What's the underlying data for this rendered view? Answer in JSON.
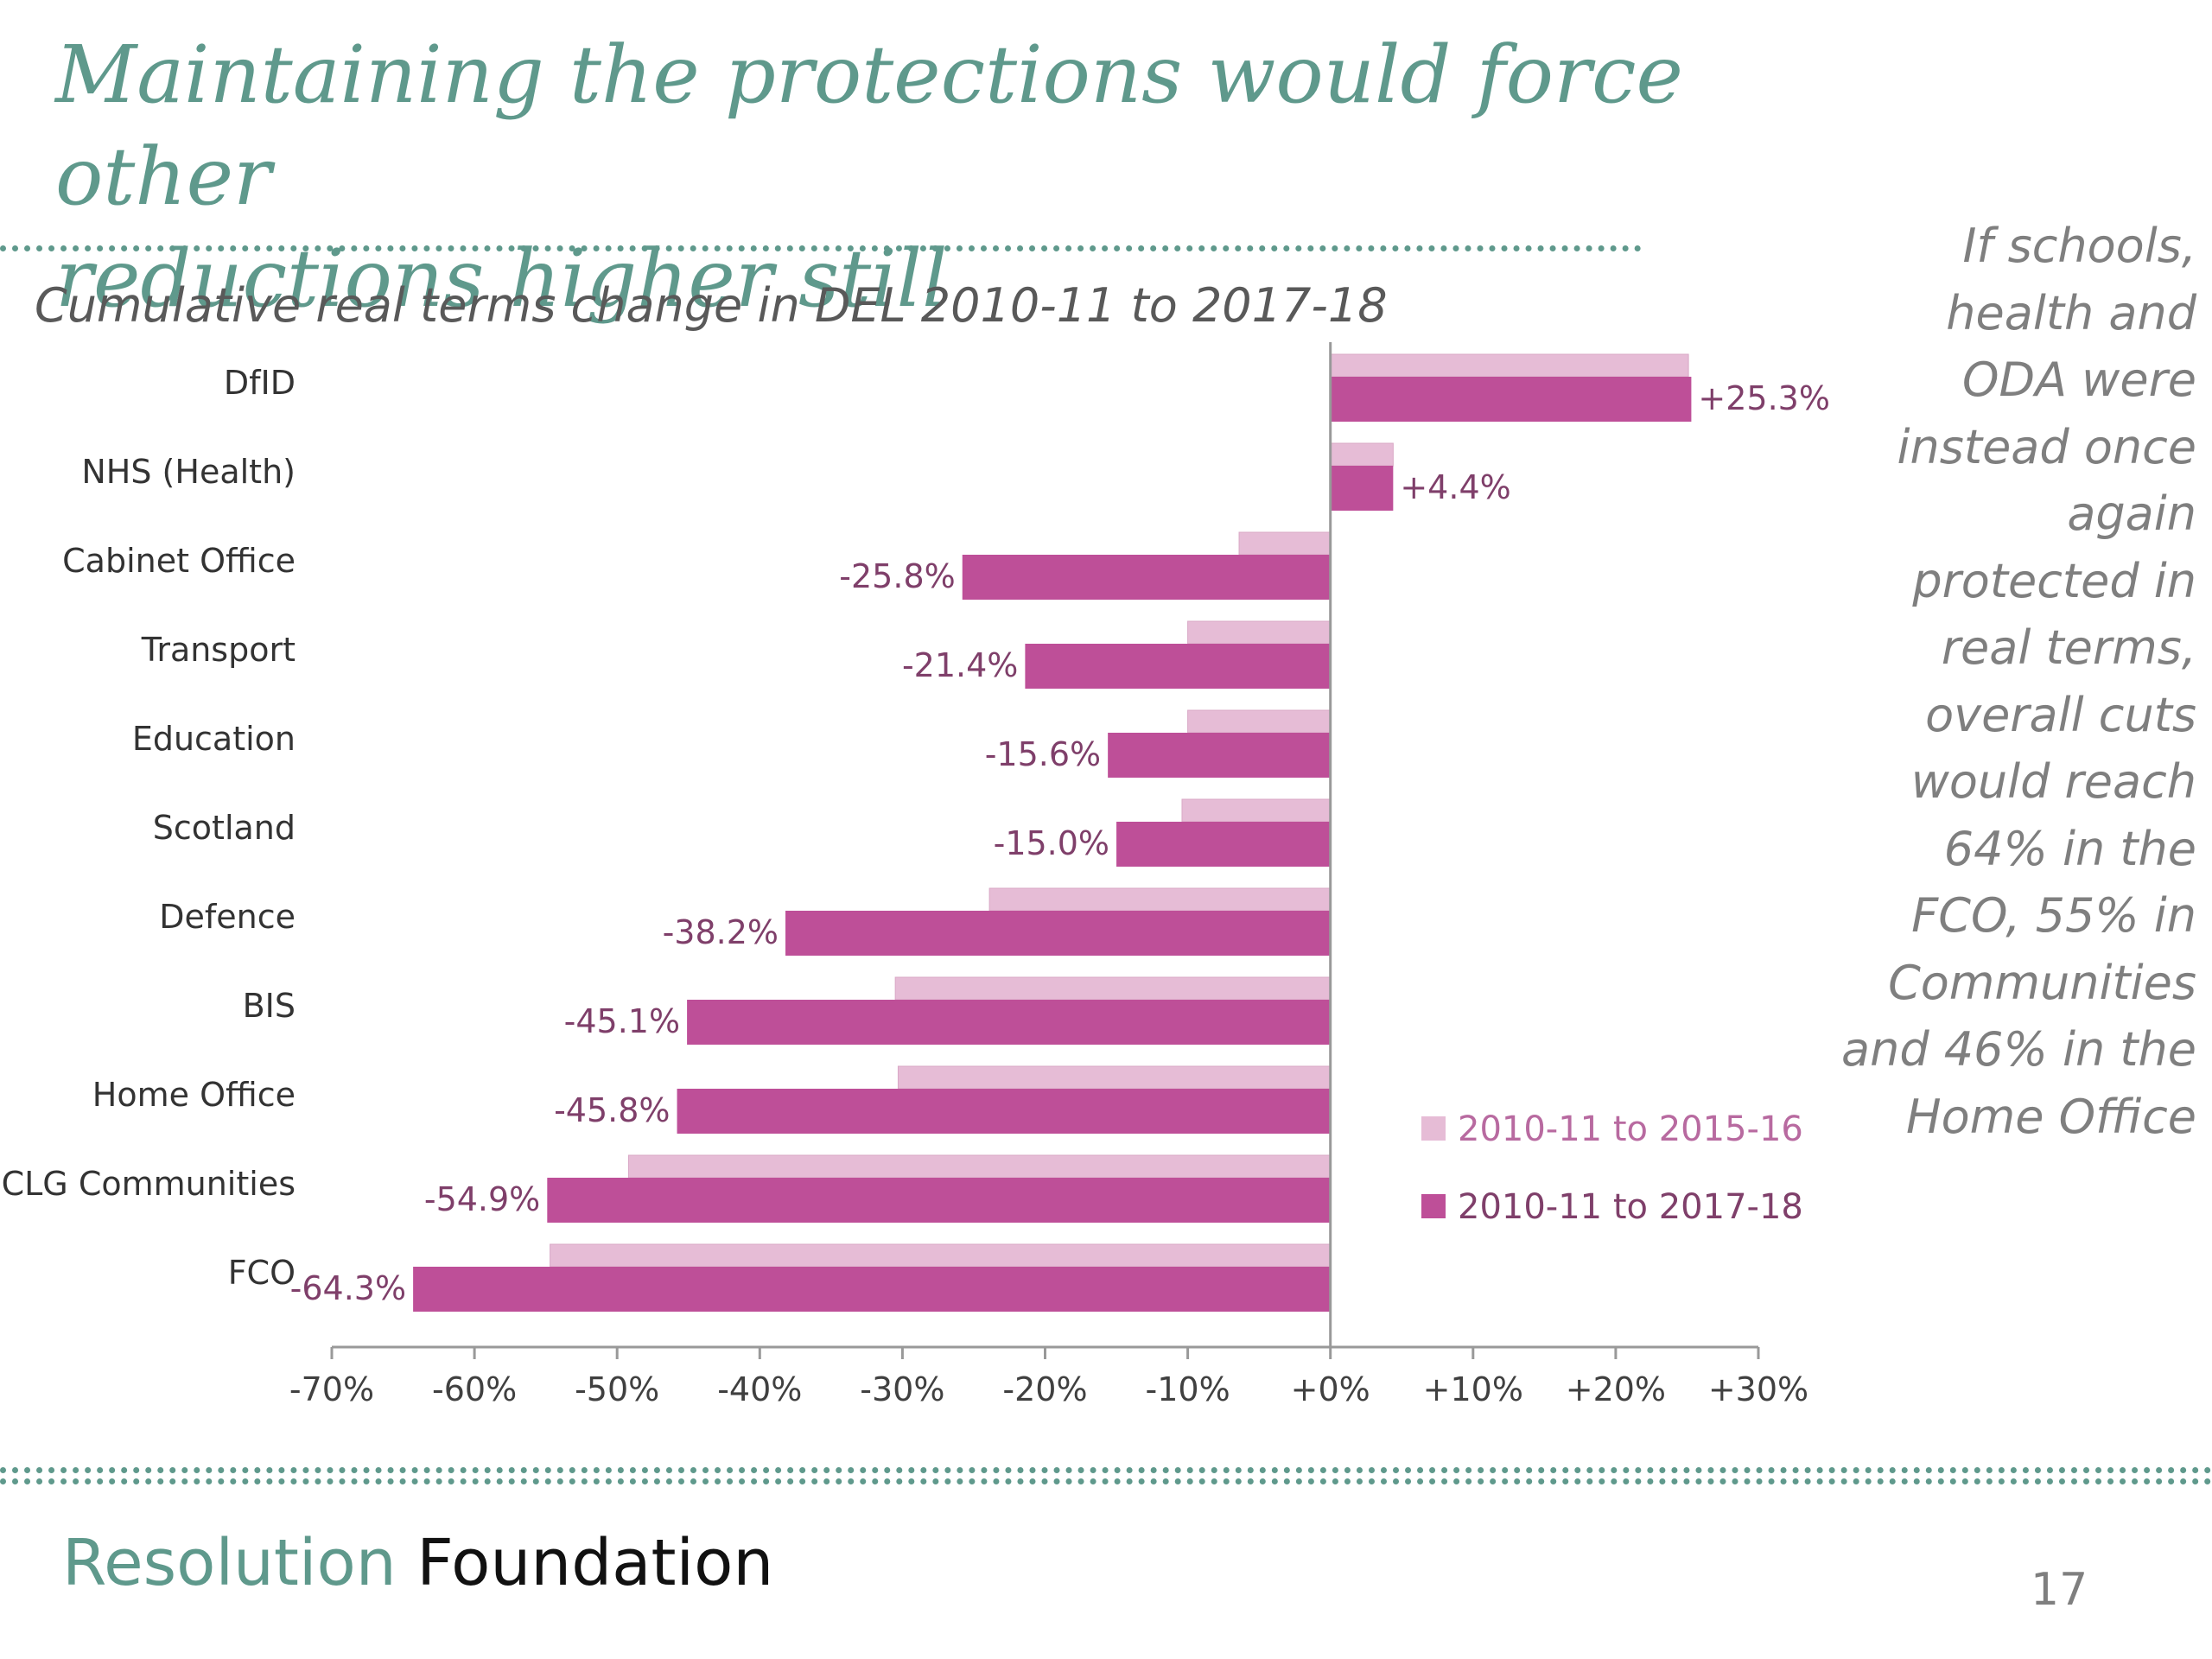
{
  "slide": {
    "title_line1": "Maintaining the protections would force other",
    "title_line2": "reductions higher still",
    "side_note": [
      "If schools,",
      "health and",
      "ODA were",
      "instead once",
      "again",
      "protected in",
      "real terms,",
      "overall cuts",
      "would reach",
      "64% in the",
      "FCO, 55% in",
      "Communities",
      "and 46% in the",
      "Home Office"
    ],
    "brand_part1": "Resolution",
    "brand_part2": "Foundation",
    "page_number": "17"
  },
  "colors": {
    "accent": "#5f998c",
    "series_light": "#e6bcd6",
    "series_dark": "#be4f98",
    "label_text": "#7f3f6a",
    "axis": "#999999"
  },
  "chart_data": {
    "type": "bar",
    "orientation": "horizontal",
    "title": "Cumulative real terms change in DEL 2010-11 to 2017-18",
    "categories": [
      "DfID",
      "NHS (Health)",
      "Cabinet Office",
      "Transport",
      "Education",
      "Scotland",
      "Defence",
      "BIS",
      "Home Office",
      "CLG Communities",
      "FCO"
    ],
    "series": [
      {
        "name": "2010-11 to 2015-16",
        "color": "#e6bcd6",
        "values": [
          25.1,
          4.4,
          -6.4,
          -10.0,
          -10.0,
          -10.4,
          -23.9,
          -30.5,
          -30.3,
          -49.2,
          -54.7
        ]
      },
      {
        "name": "2010-11 to 2017-18",
        "color": "#be4f98",
        "values": [
          25.3,
          4.4,
          -25.8,
          -21.4,
          -15.6,
          -15.0,
          -38.2,
          -45.1,
          -45.8,
          -54.9,
          -64.3
        ]
      }
    ],
    "data_labels": [
      "+25.3%",
      "+4.4%",
      "-25.8%",
      "-21.4%",
      "-15.6%",
      "-15.0%",
      "-38.2%",
      "-45.1%",
      "-45.8%",
      "-54.9%",
      "-64.3%"
    ],
    "xlim": [
      -70,
      30
    ],
    "xticks": [
      -70,
      -60,
      -50,
      -40,
      -30,
      -20,
      -10,
      0,
      10,
      20,
      30
    ],
    "xtick_labels": [
      "-70%",
      "-60%",
      "-50%",
      "-40%",
      "-30%",
      "-20%",
      "-10%",
      "+0%",
      "+10%",
      "+20%",
      "+30%"
    ],
    "legend_position": "bottom-right",
    "grid": false
  }
}
